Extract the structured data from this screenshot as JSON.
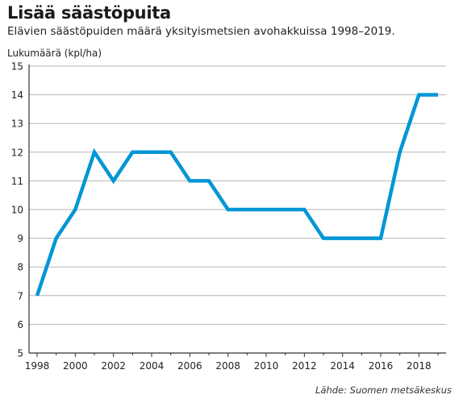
{
  "chart_data": {
    "type": "line",
    "title": "Lisää säästöpuita",
    "subtitle": "Elävien säästöpuiden määrä yksityismetsien avohakkuissa 1998–2019.",
    "ylabel": "Lukumäärä (kpl/ha)",
    "source": "Lähde: Suomen metsäkeskus",
    "xlim": [
      1998,
      2019
    ],
    "ylim": [
      5,
      15
    ],
    "x_ticks": [
      "1998",
      "2000",
      "2002",
      "2004",
      "2006",
      "2008",
      "2010",
      "2012",
      "2014",
      "2016",
      "2018"
    ],
    "y_ticks": [
      "5",
      "6",
      "7",
      "8",
      "9",
      "10",
      "11",
      "12",
      "13",
      "14",
      "15"
    ],
    "grid": true,
    "line_color": "#0096d6",
    "series": [
      {
        "x": [
          1998,
          1999,
          2000,
          2001,
          2002,
          2003,
          2004,
          2005,
          2006,
          2007,
          2008,
          2009,
          2010,
          2011,
          2012,
          2013,
          2014,
          2015,
          2016,
          2017,
          2018,
          2019
        ],
        "values": [
          7,
          9,
          10,
          12,
          11,
          12,
          12,
          12,
          11,
          11,
          10,
          10,
          10,
          10,
          10,
          9,
          9,
          9,
          9,
          12,
          14,
          14
        ]
      }
    ]
  }
}
